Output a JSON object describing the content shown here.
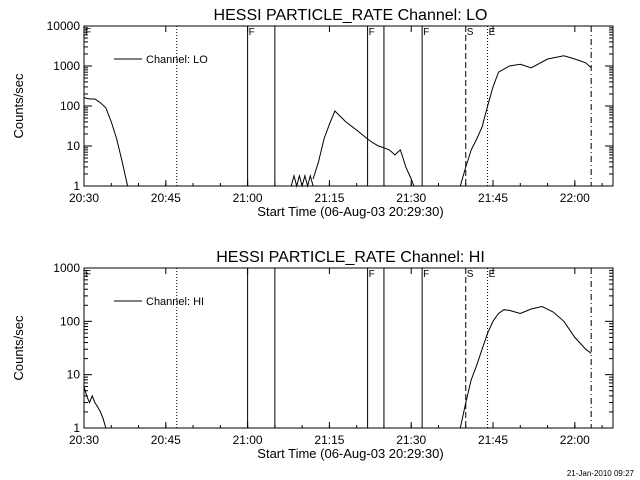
{
  "footer": {
    "timestamp": "21-Jan-2010 09:27"
  },
  "chart_data": [
    {
      "type": "line",
      "title": "HESSI PARTICLE_RATE Channel: LO",
      "xlabel": "Start Time (06-Aug-03 20:29:30)",
      "ylabel": "Counts/sec",
      "xlim": [
        "20:30",
        "22:07"
      ],
      "x_ticks": [
        "20:30",
        "20:45",
        "21:00",
        "21:15",
        "21:30",
        "21:45",
        "22:00"
      ],
      "ylim": [
        1,
        10000
      ],
      "yscale": "log",
      "y_ticks": [
        "1",
        "10",
        "100",
        "1000",
        "10000"
      ],
      "legend": {
        "placement": "top-left",
        "entries": [
          "Channel: LO"
        ]
      },
      "markers": [
        {
          "time": "20:30",
          "label": "F",
          "style": "solid"
        },
        {
          "time": "20:47",
          "label": "",
          "style": "dotted"
        },
        {
          "time": "21:00",
          "label": "F",
          "style": "solid"
        },
        {
          "time": "21:05",
          "label": "",
          "style": "solid"
        },
        {
          "time": "21:22",
          "label": "F",
          "style": "solid"
        },
        {
          "time": "21:25",
          "label": "",
          "style": "solid"
        },
        {
          "time": "21:32",
          "label": "F",
          "style": "solid"
        },
        {
          "time": "21:40",
          "label": "S",
          "style": "dashed"
        },
        {
          "time": "21:44",
          "label": "E",
          "style": "dotted"
        },
        {
          "time": "22:03",
          "label": "",
          "style": "dashdot"
        }
      ],
      "series": [
        {
          "segments": [
            [
              [
                "20:30",
                160
              ],
              [
                "20:31",
                150
              ],
              [
                "20:32",
                150
              ],
              [
                "20:33",
                120
              ],
              [
                "20:34",
                90
              ],
              [
                "20:35",
                40
              ],
              [
                "20:36",
                15
              ],
              [
                "20:37",
                4
              ],
              [
                "20:38",
                1
              ]
            ],
            [
              [
                "21:08",
                1
              ],
              [
                "21:08.5",
                1.8
              ],
              [
                "21:09",
                1
              ],
              [
                "21:09.5",
                1.8
              ],
              [
                "21:10",
                1
              ],
              [
                "21:10.5",
                1.8
              ],
              [
                "21:11",
                1
              ],
              [
                "21:11.5",
                1.8
              ],
              [
                "21:12",
                1
              ]
            ],
            [
              [
                "21:12",
                1.5
              ],
              [
                "21:13",
                4
              ],
              [
                "21:14",
                15
              ],
              [
                "21:15",
                35
              ],
              [
                "21:16",
                75
              ],
              [
                "21:17",
                55
              ],
              [
                "21:18",
                40
              ],
              [
                "21:20",
                25
              ],
              [
                "21:22",
                15
              ],
              [
                "21:23",
                12
              ],
              [
                "21:24",
                10
              ],
              [
                "21:25",
                9
              ],
              [
                "21:26",
                8
              ],
              [
                "21:27",
                6
              ],
              [
                "21:28",
                8
              ],
              [
                "21:28.5",
                5
              ],
              [
                "21:29",
                3
              ],
              [
                "21:30",
                1.5
              ],
              [
                "21:30.5",
                1
              ]
            ],
            [
              [
                "21:39",
                1
              ],
              [
                "21:40",
                3
              ],
              [
                "21:41",
                8
              ],
              [
                "21:42",
                15
              ],
              [
                "21:43",
                30
              ],
              [
                "21:44",
                100
              ],
              [
                "21:45",
                300
              ],
              [
                "21:46",
                700
              ],
              [
                "21:48",
                1000
              ],
              [
                "21:50",
                1100
              ],
              [
                "21:52",
                900
              ],
              [
                "21:55",
                1500
              ],
              [
                "21:58",
                1800
              ],
              [
                "22:00",
                1500
              ],
              [
                "22:02",
                1200
              ],
              [
                "22:03",
                900
              ]
            ]
          ]
        }
      ]
    },
    {
      "type": "line",
      "title": "HESSI PARTICLE_RATE Channel: HI",
      "xlabel": "Start Time (06-Aug-03 20:29:30)",
      "ylabel": "Counts/sec",
      "xlim": [
        "20:30",
        "22:07"
      ],
      "x_ticks": [
        "20:30",
        "20:45",
        "21:00",
        "21:15",
        "21:30",
        "21:45",
        "22:00"
      ],
      "ylim": [
        1,
        1000
      ],
      "yscale": "log",
      "y_ticks": [
        "1",
        "10",
        "100",
        "1000"
      ],
      "legend": {
        "placement": "top-left",
        "entries": [
          "Channel: HI"
        ]
      },
      "markers": [
        {
          "time": "20:30",
          "label": "F",
          "style": "solid"
        },
        {
          "time": "20:47",
          "label": "",
          "style": "dotted"
        },
        {
          "time": "21:00",
          "label": "",
          "style": "solid"
        },
        {
          "time": "21:05",
          "label": "",
          "style": "solid"
        },
        {
          "time": "21:22",
          "label": "F",
          "style": "solid"
        },
        {
          "time": "21:25",
          "label": "",
          "style": "solid"
        },
        {
          "time": "21:32",
          "label": "F",
          "style": "solid"
        },
        {
          "time": "21:40",
          "label": "S",
          "style": "dashed"
        },
        {
          "time": "21:44",
          "label": "E",
          "style": "dotted"
        },
        {
          "time": "22:03",
          "label": "",
          "style": "dashdot"
        }
      ],
      "series": [
        {
          "segments": [
            [
              [
                "20:30",
                6
              ],
              [
                "20:30.5",
                4
              ],
              [
                "20:31",
                3
              ],
              [
                "20:31.5",
                4
              ],
              [
                "20:32",
                3
              ],
              [
                "20:32.5",
                2.5
              ],
              [
                "20:33",
                2
              ],
              [
                "20:33.5",
                1.5
              ],
              [
                "20:34",
                1
              ]
            ],
            [
              [
                "21:39",
                1
              ],
              [
                "21:40",
                3
              ],
              [
                "21:41",
                8
              ],
              [
                "21:42",
                15
              ],
              [
                "21:43",
                30
              ],
              [
                "21:44",
                60
              ],
              [
                "21:45",
                100
              ],
              [
                "21:46",
                140
              ],
              [
                "21:47",
                165
              ],
              [
                "21:48",
                160
              ],
              [
                "21:50",
                140
              ],
              [
                "21:52",
                170
              ],
              [
                "21:54",
                190
              ],
              [
                "21:56",
                150
              ],
              [
                "21:58",
                100
              ],
              [
                "22:00",
                50
              ],
              [
                "22:02",
                30
              ],
              [
                "22:03",
                25
              ]
            ]
          ]
        }
      ]
    }
  ]
}
